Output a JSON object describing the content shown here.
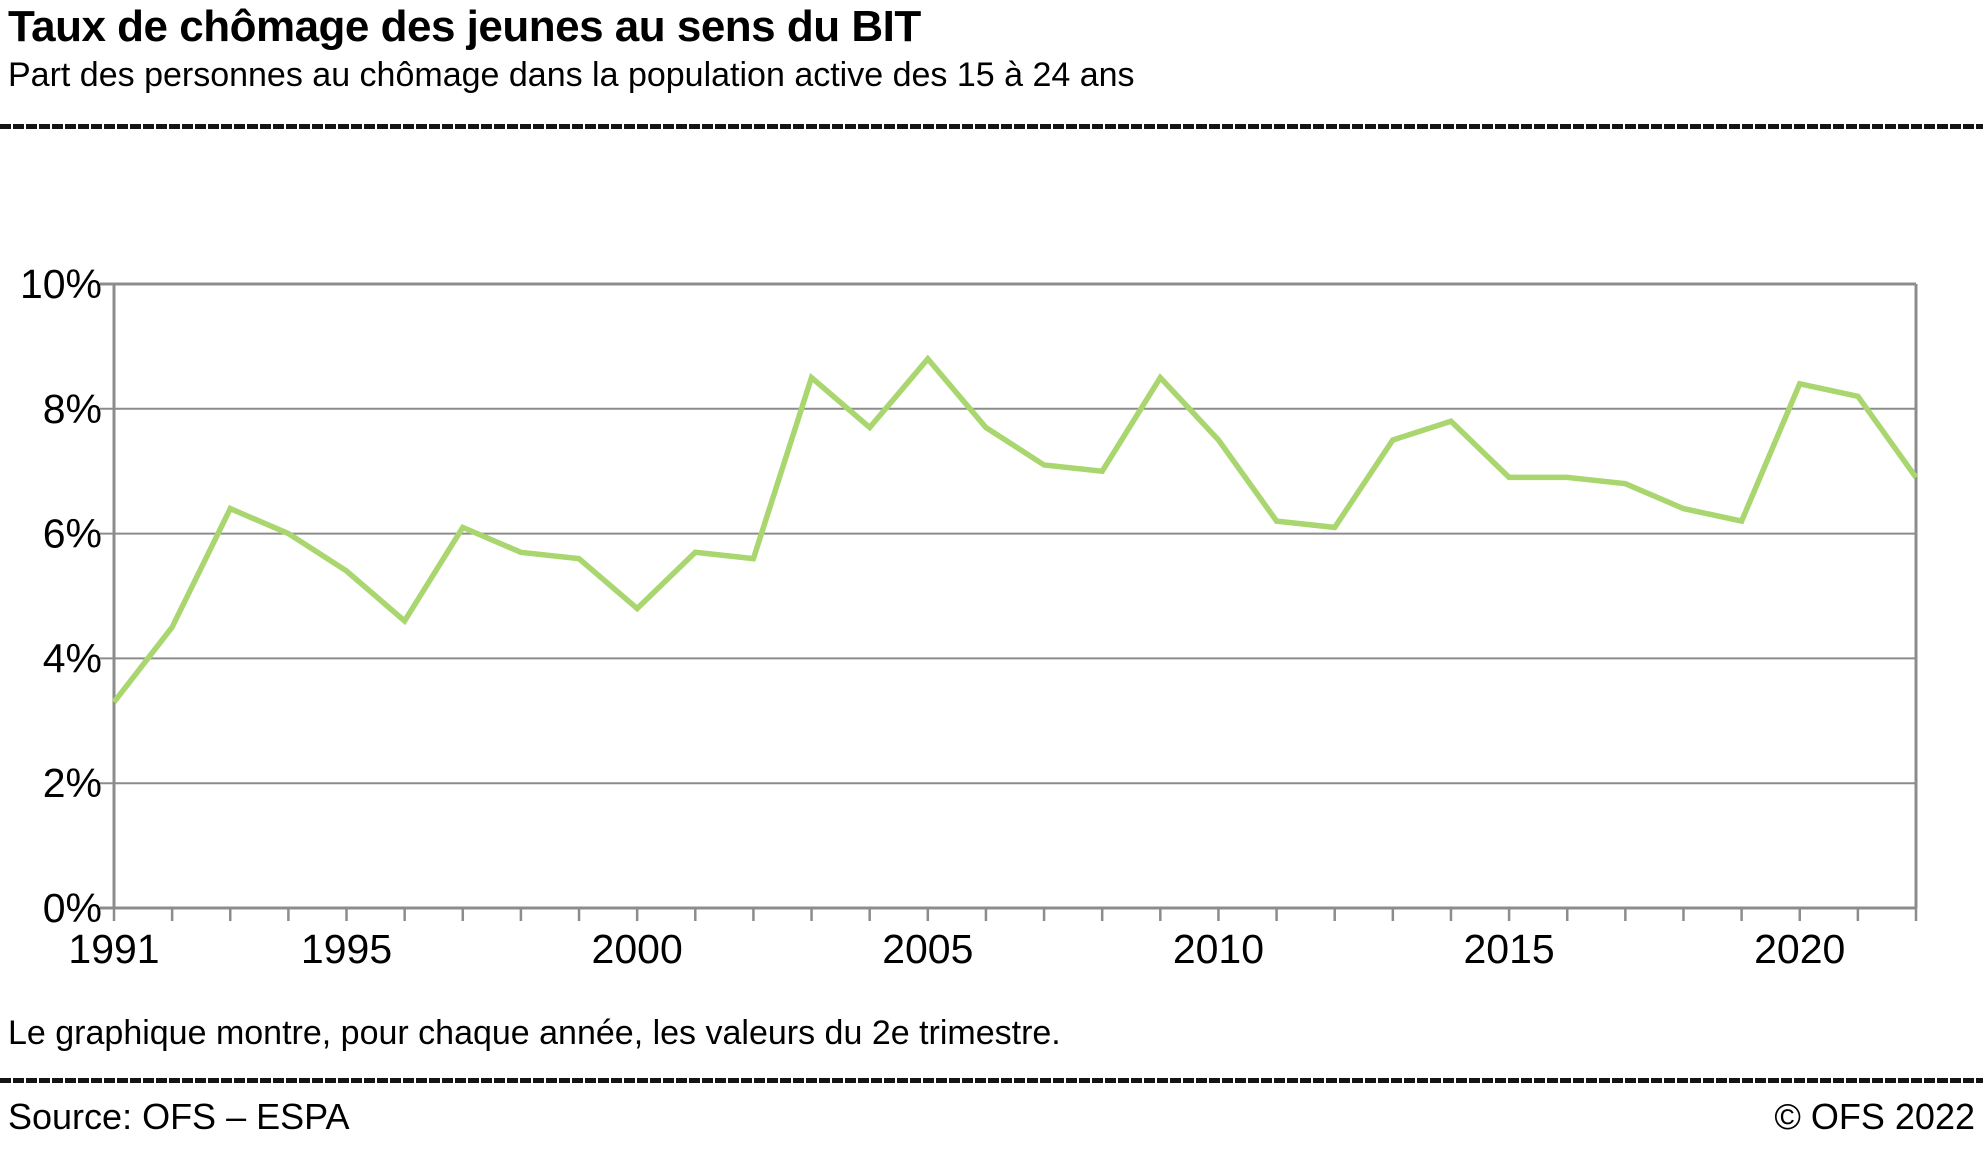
{
  "header": {
    "title": "Taux de chômage des jeunes au sens du BIT",
    "subtitle": "Part des personnes au chômage dans la population active des 15 à 24 ans"
  },
  "chart_data": {
    "type": "line",
    "title": "Taux de chômage des jeunes au sens du BIT",
    "subtitle": "Part des personnes au chômage dans la population active des 15 à 24 ans",
    "unit": "%",
    "x": [
      1991,
      1992,
      1993,
      1994,
      1995,
      1996,
      1997,
      1998,
      1999,
      2000,
      2001,
      2002,
      2003,
      2004,
      2005,
      2006,
      2007,
      2008,
      2009,
      2010,
      2011,
      2012,
      2013,
      2014,
      2015,
      2016,
      2017,
      2018,
      2019,
      2020,
      2021,
      2022
    ],
    "values": [
      3.3,
      4.5,
      6.4,
      6.0,
      5.4,
      4.6,
      6.1,
      5.7,
      5.6,
      4.8,
      5.7,
      5.6,
      8.5,
      7.7,
      8.8,
      7.7,
      7.1,
      7.0,
      8.5,
      7.5,
      6.2,
      6.1,
      7.5,
      7.8,
      6.9,
      6.9,
      6.8,
      6.4,
      6.2,
      8.4,
      8.2,
      6.9
    ],
    "ylim": [
      0,
      10
    ],
    "yticks": [
      0,
      2,
      4,
      6,
      8,
      10
    ],
    "ytick_suffix": "%",
    "xticks_labeled": [
      1991,
      1995,
      2000,
      2005,
      2010,
      2015,
      2020
    ],
    "grid": true,
    "legend": false,
    "colors": {
      "line": "#a9d66e",
      "grid": "#8c8c8c",
      "axis": "#8c8c8c",
      "text": "#000000",
      "rule": "#141414"
    }
  },
  "footnote": {
    "text": "Le graphique montre, pour chaque année, les valeurs du 2e trimestre."
  },
  "footer": {
    "source": "Source: OFS –  ESPA",
    "copyright": "© OFS 2022"
  }
}
